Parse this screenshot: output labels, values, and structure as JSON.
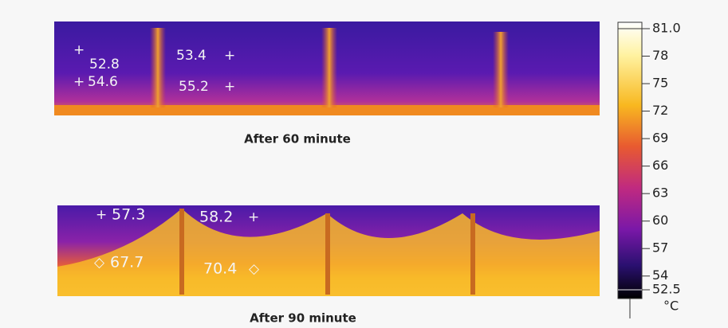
{
  "panels": [
    {
      "caption": "After 60 minute",
      "points": [
        "52.8",
        "54.6",
        "53.4",
        "55.2"
      ]
    },
    {
      "caption": "After 90 minute",
      "points": [
        "57.3",
        "67.7",
        "58.2",
        "70.4"
      ]
    }
  ],
  "colorbar": {
    "lim": [
      52.5,
      81
    ],
    "ticks": [
      {
        "value": 81,
        "label": "81.0"
      },
      78,
      75,
      72,
      69,
      66,
      63,
      60,
      57,
      54,
      52.5
    ],
    "unit": "°C"
  }
}
